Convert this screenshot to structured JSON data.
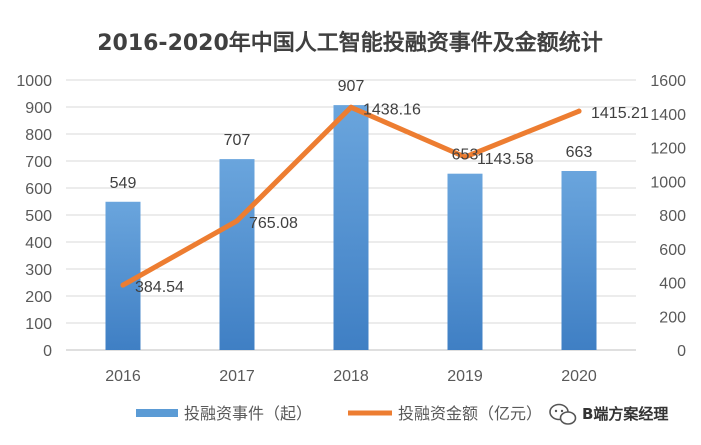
{
  "chart_data": {
    "type": "bar",
    "title": "2016-2020年中国人工智能投融资事件及金额统计",
    "categories": [
      "2016",
      "2017",
      "2018",
      "2019",
      "2020"
    ],
    "series": [
      {
        "name": "投融资事件（起）",
        "type": "bar",
        "axis": "left",
        "values": [
          549,
          707,
          907,
          653,
          663
        ],
        "labels": [
          "549",
          "707",
          "907",
          "653",
          "663"
        ],
        "color": "#5b9bd5"
      },
      {
        "name": "投融资金额（亿元）",
        "type": "line",
        "axis": "right",
        "values": [
          384.54,
          765.08,
          1438.16,
          1143.58,
          1415.21
        ],
        "labels": [
          "384.54",
          "765.08",
          "1438.16",
          "1143.58",
          "1415.21"
        ],
        "color": "#ed7d31"
      }
    ],
    "y_left": {
      "min": 0,
      "max": 1000,
      "step": 100
    },
    "y_right": {
      "min": 0,
      "max": 1600,
      "step": 200
    },
    "gridlines": true,
    "legend_position": "bottom"
  },
  "watermark": {
    "text": "B端方案经理",
    "icon": "wechat-icon"
  }
}
